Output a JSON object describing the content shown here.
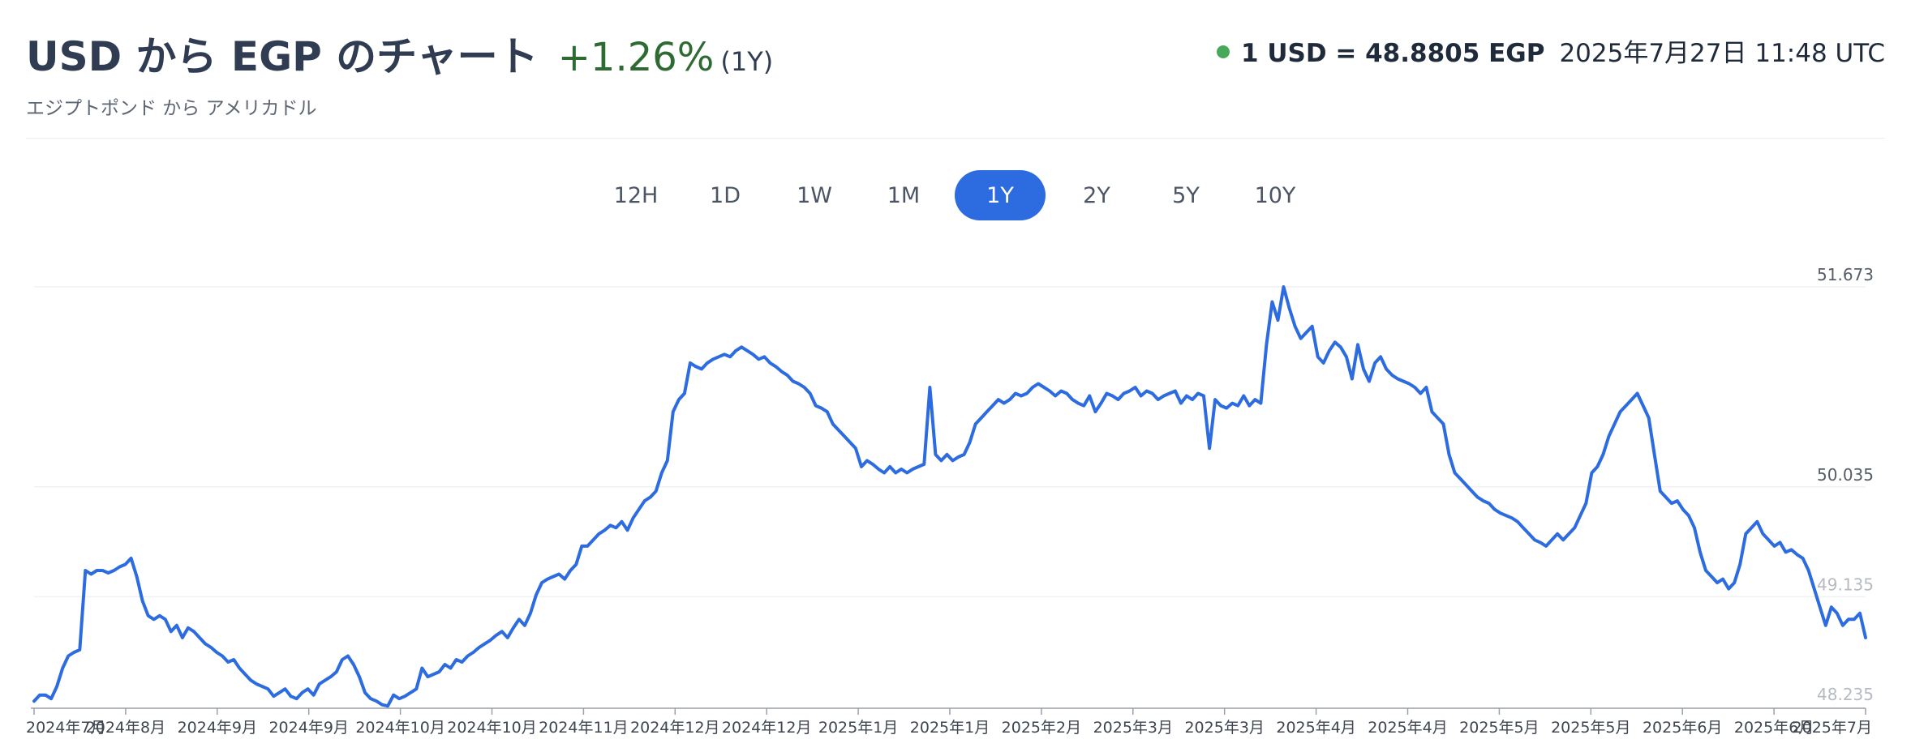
{
  "header": {
    "title": "USD から EGP のチャート",
    "change": "+1.26%",
    "period": "(1Y)",
    "rate_label": "1 USD = 48.8805 EGP",
    "timestamp": "2025年7月27日 11:48 UTC",
    "subtitle": "エジプトポンド から アメリカドル",
    "status_color": "#48a857",
    "change_color": "#2e6b33"
  },
  "tabs": [
    {
      "label": "12H",
      "active": false
    },
    {
      "label": "1D",
      "active": false
    },
    {
      "label": "1W",
      "active": false
    },
    {
      "label": "1M",
      "active": false
    },
    {
      "label": "1Y",
      "active": true
    },
    {
      "label": "2Y",
      "active": false
    },
    {
      "label": "5Y",
      "active": false
    },
    {
      "label": "10Y",
      "active": false
    }
  ],
  "chart_data": {
    "type": "line",
    "title": "",
    "xlabel": "",
    "ylabel": "",
    "line_color": "#2d6be0",
    "ylim": [
      48.235,
      51.673
    ],
    "y_ticks": [
      {
        "value": 51.673,
        "label": "51.673",
        "faded": false
      },
      {
        "value": 50.035,
        "label": "50.035",
        "faded": false
      },
      {
        "value": 49.135,
        "label": "49.135",
        "faded": true
      },
      {
        "value": 48.235,
        "label": "48.235",
        "faded": true
      }
    ],
    "x_tick_labels": [
      "2024年7月",
      "2024年8月",
      "2024年9月",
      "2024年9月",
      "2024年10月",
      "2024年10月",
      "2024年11月",
      "2024年12月",
      "2024年12月",
      "2025年1月",
      "2025年1月",
      "2025年2月",
      "2025年3月",
      "2025年3月",
      "2025年4月",
      "2025年4月",
      "2025年5月",
      "2025年5月",
      "2025年6月",
      "2025年6月",
      "2025年7月"
    ],
    "series": [
      {
        "values": [
          48.28,
          48.33,
          48.33,
          48.3,
          48.4,
          48.55,
          48.65,
          48.68,
          48.7,
          49.35,
          49.32,
          49.35,
          49.35,
          49.33,
          49.35,
          49.38,
          49.4,
          49.45,
          49.3,
          49.1,
          48.98,
          48.95,
          48.98,
          48.95,
          48.85,
          48.9,
          48.8,
          48.88,
          48.85,
          48.8,
          48.75,
          48.72,
          48.68,
          48.65,
          48.6,
          48.62,
          48.55,
          48.5,
          48.45,
          48.42,
          48.4,
          48.38,
          48.32,
          48.35,
          48.38,
          48.32,
          48.3,
          48.35,
          48.38,
          48.33,
          48.42,
          48.45,
          48.48,
          48.52,
          48.62,
          48.65,
          48.58,
          48.48,
          48.35,
          48.3,
          48.28,
          48.25,
          48.24,
          48.33,
          48.3,
          48.32,
          48.35,
          48.38,
          48.55,
          48.48,
          48.5,
          48.52,
          48.58,
          48.55,
          48.62,
          48.6,
          48.65,
          48.68,
          48.72,
          48.75,
          48.78,
          48.82,
          48.85,
          48.8,
          48.88,
          48.95,
          48.9,
          49.0,
          49.15,
          49.25,
          49.28,
          49.3,
          49.32,
          49.28,
          49.35,
          49.4,
          49.55,
          49.55,
          49.6,
          49.65,
          49.68,
          49.72,
          49.7,
          49.75,
          49.68,
          49.78,
          49.85,
          49.92,
          49.95,
          50.0,
          50.15,
          50.25,
          50.65,
          50.75,
          50.8,
          51.05,
          51.02,
          51.0,
          51.05,
          51.08,
          51.1,
          51.12,
          51.1,
          51.15,
          51.18,
          51.15,
          51.12,
          51.08,
          51.1,
          51.05,
          51.02,
          50.98,
          50.95,
          50.9,
          50.88,
          50.85,
          50.8,
          50.7,
          50.68,
          50.65,
          50.55,
          50.5,
          50.45,
          50.4,
          50.35,
          50.2,
          50.25,
          50.22,
          50.18,
          50.15,
          50.2,
          50.15,
          50.18,
          50.15,
          50.18,
          50.2,
          50.22,
          50.85,
          50.3,
          50.25,
          50.3,
          50.25,
          50.28,
          50.3,
          50.4,
          50.55,
          50.6,
          50.65,
          50.7,
          50.75,
          50.72,
          50.75,
          50.8,
          50.78,
          50.8,
          50.85,
          50.88,
          50.85,
          50.82,
          50.78,
          50.82,
          50.8,
          50.75,
          50.72,
          50.7,
          50.78,
          50.65,
          50.72,
          50.8,
          50.78,
          50.75,
          50.8,
          50.82,
          50.85,
          50.78,
          50.82,
          50.8,
          50.75,
          50.78,
          50.8,
          50.82,
          50.72,
          50.78,
          50.75,
          50.8,
          50.78,
          50.35,
          50.75,
          50.7,
          50.68,
          50.72,
          50.7,
          50.78,
          50.7,
          50.75,
          50.72,
          51.2,
          51.55,
          51.4,
          51.673,
          51.5,
          51.35,
          51.25,
          51.3,
          51.35,
          51.1,
          51.05,
          51.15,
          51.22,
          51.18,
          51.1,
          50.92,
          51.2,
          51.0,
          50.9,
          51.05,
          51.1,
          51.0,
          50.95,
          50.92,
          50.9,
          50.88,
          50.85,
          50.8,
          50.85,
          50.65,
          50.6,
          50.55,
          50.3,
          50.15,
          50.1,
          50.05,
          50.0,
          49.95,
          49.92,
          49.9,
          49.85,
          49.82,
          49.8,
          49.78,
          49.75,
          49.7,
          49.65,
          49.6,
          49.58,
          49.55,
          49.6,
          49.65,
          49.6,
          49.65,
          49.7,
          49.8,
          49.9,
          50.15,
          50.2,
          50.3,
          50.45,
          50.55,
          50.65,
          50.7,
          50.75,
          50.8,
          50.7,
          50.6,
          50.3,
          50.0,
          49.95,
          49.9,
          49.92,
          49.85,
          49.8,
          49.7,
          49.5,
          49.35,
          49.3,
          49.25,
          49.28,
          49.2,
          49.25,
          49.4,
          49.65,
          49.7,
          49.75,
          49.65,
          49.6,
          49.55,
          49.58,
          49.5,
          49.52,
          49.48,
          49.45,
          49.35,
          49.2,
          49.05,
          48.9,
          49.05,
          49.0,
          48.9,
          48.95,
          48.95,
          49.0,
          48.8
        ]
      }
    ]
  }
}
